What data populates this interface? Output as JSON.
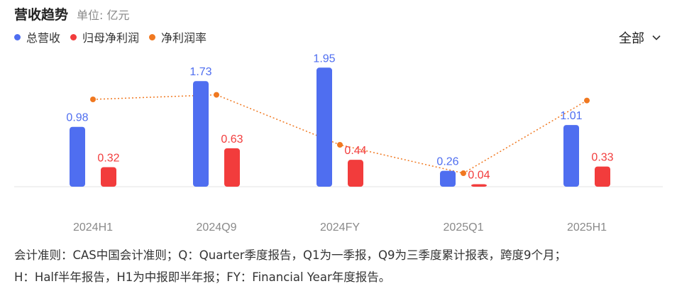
{
  "header": {
    "title": "营收趋势",
    "unit": "单位: 亿元"
  },
  "legend": [
    {
      "label": "总营收",
      "color": "#4f6ef0"
    },
    {
      "label": "归母净利润",
      "color": "#f23c3c"
    },
    {
      "label": "净利润率",
      "color": "#f07820"
    }
  ],
  "filter": {
    "label": "全部",
    "icon": "chevron-down-icon"
  },
  "chart_data": {
    "type": "bar",
    "categories": [
      "2024H1",
      "2024Q9",
      "2024FY",
      "2025Q1",
      "2025H1"
    ],
    "series": [
      {
        "name": "总营收",
        "kind": "bar",
        "color": "#4f6ef0",
        "values": [
          0.98,
          1.73,
          1.95,
          0.26,
          1.01
        ]
      },
      {
        "name": "归母净利润",
        "kind": "bar",
        "color": "#f23c3c",
        "values": [
          0.32,
          0.63,
          0.44,
          0.04,
          0.33
        ]
      },
      {
        "name": "净利润率",
        "kind": "line",
        "color": "#f07820",
        "values": [
          0.75,
          0.79,
          0.35,
          0.1,
          0.74
        ]
      }
    ],
    "ylim": [
      0,
      2
    ],
    "line_ylim": [
      0,
      1
    ],
    "grid": false
  },
  "footnote": {
    "line1": "会计准则：CAS中国会计准则；Q：Quarter季度报告，Q1为一季报，Q9为三季度累计报表，跨度9个月；",
    "line2": "H：Half半年报告，H1为中报即半年报；FY：Financial Year年度报告。"
  }
}
